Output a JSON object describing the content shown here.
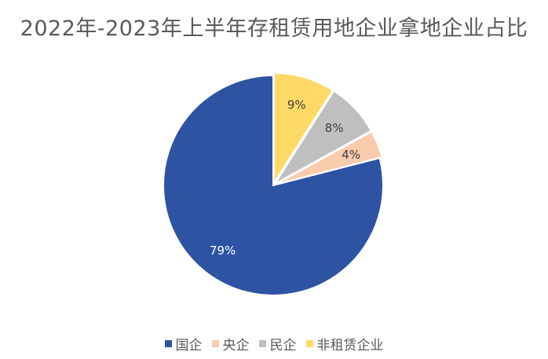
{
  "chart_data": {
    "type": "pie",
    "title": "2022年-2023年上半年存租赁用地企业拿地企业占比",
    "categories": [
      "国企",
      "央企",
      "民企",
      "非租赁企业"
    ],
    "values": [
      79,
      4,
      8,
      9
    ],
    "labels": [
      "79%",
      "4%",
      "8%",
      "9%"
    ],
    "colors": [
      "#2E53A3",
      "#F8CBAD",
      "#BFBFBF",
      "#FFD966"
    ],
    "label_colors": [
      "#FFFFFF",
      "#404040",
      "#404040",
      "#404040"
    ],
    "legend_position": "bottom"
  }
}
